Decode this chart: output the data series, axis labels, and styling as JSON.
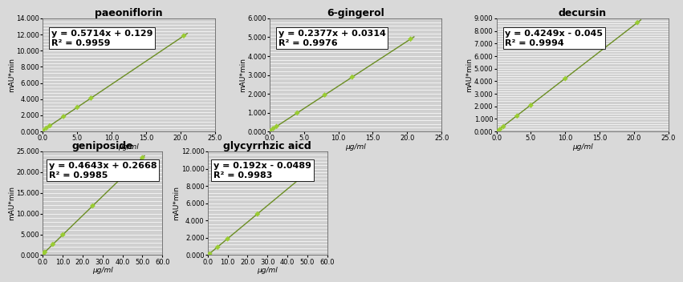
{
  "panels": [
    {
      "title": "paeoniflorin",
      "equation": "y = 0.5714x + 0.129",
      "r2": "R² = 0.9959",
      "slope": 0.5714,
      "intercept": 0.129,
      "x_data": [
        0.0,
        0.5,
        1.0,
        3.0,
        5.0,
        7.0,
        20.5
      ],
      "xlim": [
        0,
        25
      ],
      "ylim": [
        0,
        14000
      ],
      "ytick_vals": [
        0,
        2000,
        4000,
        6000,
        8000,
        10000,
        12000,
        14000
      ],
      "ytick_labels": [
        "0.000",
        "2.000",
        "4.000",
        "6.000",
        "8.000",
        "10.000",
        "12.000",
        "14.000"
      ],
      "xticks": [
        0.0,
        5.0,
        10.0,
        15.0,
        20.0,
        25.0
      ],
      "xtick_labels": [
        "0.0",
        "5.0",
        "10.0",
        "15.0",
        "20.0",
        "25.0"
      ],
      "ylabel": "mAU*min",
      "xlabel": "μg/ml",
      "line_xmax": 21.0
    },
    {
      "title": "6-gingerol",
      "equation": "y = 0.2377x + 0.0314",
      "r2": "R² = 0.9976",
      "slope": 0.2377,
      "intercept": 0.0314,
      "x_data": [
        0.0,
        0.5,
        1.0,
        4.0,
        8.0,
        12.0,
        20.5
      ],
      "xlim": [
        0,
        25
      ],
      "ylim": [
        0,
        6000
      ],
      "ytick_vals": [
        0,
        1000,
        2000,
        3000,
        4000,
        5000,
        6000
      ],
      "ytick_labels": [
        "0.000",
        "1.000",
        "2.000",
        "3.000",
        "4.000",
        "5.000",
        "6.000"
      ],
      "xticks": [
        0.0,
        5.0,
        10.0,
        15.0,
        20.0,
        25.0
      ],
      "xtick_labels": [
        "0.0",
        "5.0",
        "10.0",
        "15.0",
        "20.0",
        "25.0"
      ],
      "ylabel": "mAU*min",
      "xlabel": "μg/ml",
      "line_xmax": 21.0
    },
    {
      "title": "decursin",
      "equation": "y = 0.4249x - 0.045",
      "r2": "R² = 0.9994",
      "slope": 0.4249,
      "intercept": -0.045,
      "x_data": [
        0.0,
        0.5,
        1.0,
        3.0,
        5.0,
        10.0,
        20.5
      ],
      "xlim": [
        0,
        25
      ],
      "ylim": [
        0,
        9000
      ],
      "ytick_vals": [
        0,
        1000,
        2000,
        3000,
        4000,
        5000,
        6000,
        7000,
        8000,
        9000
      ],
      "ytick_labels": [
        "0.000",
        "1.000",
        "2.000",
        "3.000",
        "4.000",
        "5.000",
        "6.000",
        "7.000",
        "8.000",
        "9.000"
      ],
      "xticks": [
        0.0,
        5.0,
        10.0,
        15.0,
        20.0,
        25.0
      ],
      "xtick_labels": [
        "0.0",
        "5.0",
        "10.0",
        "15.0",
        "20.0",
        "25.0"
      ],
      "ylabel": "mAU*min",
      "xlabel": "μg/ml",
      "line_xmax": 21.0
    },
    {
      "title": "geniposide",
      "equation": "y = 0.4643x + 0.2668",
      "r2": "R² = 0.9985",
      "slope": 0.4643,
      "intercept": 0.2668,
      "x_data": [
        0.0,
        0.5,
        1.0,
        5.0,
        10.0,
        25.0,
        50.0
      ],
      "xlim": [
        0,
        60
      ],
      "ylim": [
        0,
        25000
      ],
      "ytick_vals": [
        0,
        5000,
        10000,
        15000,
        20000,
        25000
      ],
      "ytick_labels": [
        "0.000",
        "5.000",
        "10.000",
        "15.000",
        "20.000",
        "25.000"
      ],
      "xticks": [
        0.0,
        10.0,
        20.0,
        30.0,
        40.0,
        50.0,
        60.0
      ],
      "xtick_labels": [
        "0.0",
        "10.0",
        "20.0",
        "30.0",
        "40.0",
        "50.0",
        "60.0"
      ],
      "ylabel": "mAU*min",
      "xlabel": "μg/ml",
      "line_xmax": 51.0
    },
    {
      "title": "glycyrrhzic aicd",
      "equation": "y = 0.192x - 0.0489",
      "r2": "R² = 0.9983",
      "slope": 0.192,
      "intercept": -0.0489,
      "x_data": [
        0.0,
        0.5,
        1.0,
        5.0,
        10.0,
        25.0,
        50.0
      ],
      "xlim": [
        0,
        60
      ],
      "ylim": [
        0,
        12000
      ],
      "ytick_vals": [
        0,
        2000,
        4000,
        6000,
        8000,
        10000,
        12000
      ],
      "ytick_labels": [
        "0.000",
        "2.000",
        "4.000",
        "6.000",
        "8.000",
        "10.000",
        "12.000"
      ],
      "xticks": [
        0.0,
        10.0,
        20.0,
        30.0,
        40.0,
        50.0,
        60.0
      ],
      "xtick_labels": [
        "0.0",
        "10.0",
        "20.0",
        "30.0",
        "40.0",
        "50.0",
        "60.0"
      ],
      "ylabel": "mAU*min",
      "xlabel": "μg/ml",
      "line_xmax": 51.0
    }
  ],
  "line_color": "#6b8e23",
  "scatter_color": "#9acd32",
  "bg_color": "#d9d9d9",
  "plot_bg_color": "#d0d0d0",
  "grid_color": "#ffffff",
  "text_color": "#000000",
  "title_fontsize": 9,
  "label_fontsize": 6.5,
  "tick_fontsize": 6,
  "annot_fontsize": 7,
  "annot_fontsize_eq": 8
}
